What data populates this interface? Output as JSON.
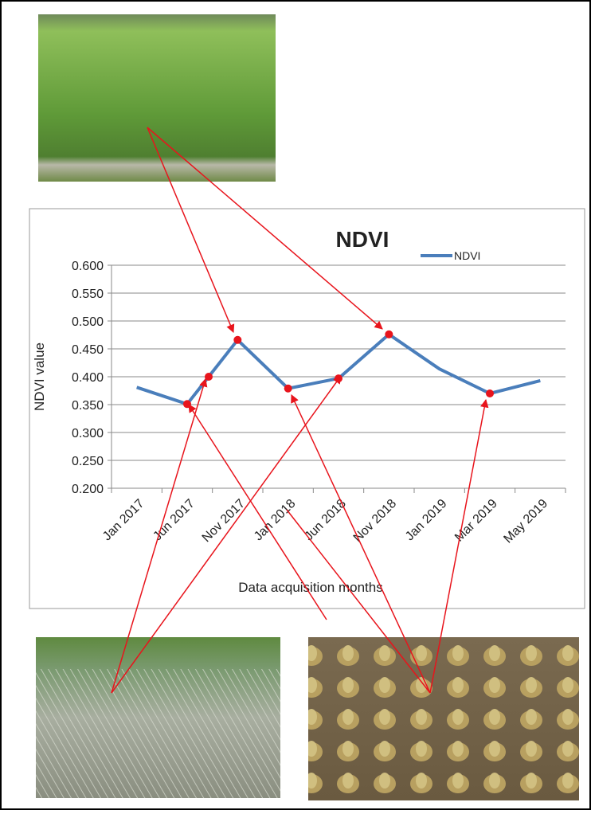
{
  "chart_data": {
    "type": "line",
    "title": "NDVI",
    "x_label": "Data acquisition months",
    "y_label": "NDVI value",
    "categories": [
      "Jan 2017",
      "Jun 2017",
      "Nov 2017",
      "Jan 2018",
      "Jun 2018",
      "Nov 2018",
      "Jan 2019",
      "Mar 2019",
      "May 2019"
    ],
    "series": [
      {
        "name": "NDVI",
        "color": "#4a7ebb",
        "values": [
          0.381,
          0.351,
          0.466,
          0.379,
          0.397,
          0.476,
          0.414,
          0.37,
          0.393
        ]
      }
    ],
    "ylim": [
      0.2,
      0.6
    ],
    "yticks": [
      {
        "value": 0.2,
        "label": "0.200"
      },
      {
        "value": 0.25,
        "label": "0.250"
      },
      {
        "value": 0.3,
        "label": "0.300"
      },
      {
        "value": 0.35,
        "label": "0.350"
      },
      {
        "value": 0.4,
        "label": "0.400"
      },
      {
        "value": 0.45,
        "label": "0.450"
      },
      {
        "value": 0.5,
        "label": "0.500"
      },
      {
        "value": 0.55,
        "label": "0.550"
      },
      {
        "value": 0.6,
        "label": "0.600"
      }
    ],
    "grid": true,
    "legend": "top-right"
  }
}
